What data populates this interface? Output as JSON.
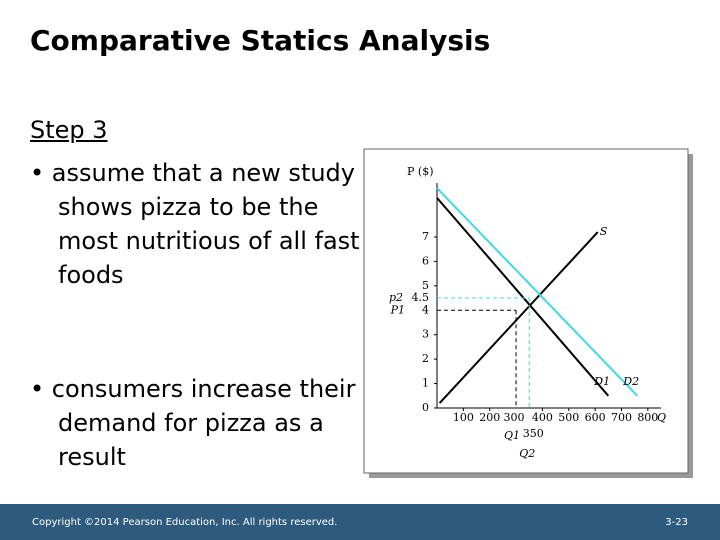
{
  "title": "Comparative Statics Analysis",
  "step": "Step 3",
  "bullets": [
    "assume that a new study shows pizza to be the most nutritious of all fast foods",
    "consumers increase their demand for pizza as a result"
  ],
  "footer": {
    "copyright": "Copyright ©2014 Pearson Education, Inc. All rights reserved.",
    "page": "3-23"
  },
  "chart_data": {
    "type": "line",
    "y_label": "P ($)",
    "x_label": "Q",
    "xlim": [
      0,
      850
    ],
    "ylim": [
      0,
      8.8
    ],
    "xticks": [
      100,
      200,
      400,
      500,
      600,
      700,
      800
    ],
    "yticks": [
      0,
      1,
      2,
      3,
      5,
      6,
      7
    ],
    "series": [
      {
        "name": "S",
        "color": "#000000",
        "x": [
          10,
          610
        ],
        "values": [
          0.2,
          7.2
        ]
      },
      {
        "name": "D1",
        "color": "#000000",
        "x": [
          0,
          650
        ],
        "values": [
          8.6,
          0.5
        ]
      },
      {
        "name": "D2",
        "color": "#3fd8e8",
        "x": [
          0,
          760
        ],
        "values": [
          9,
          0.5
        ]
      }
    ],
    "equilibria": [
      {
        "q": 300,
        "p": 4,
        "p_label": "P1",
        "q_label": "Q1",
        "color": "#000000"
      },
      {
        "q": 350,
        "p": 4.5,
        "p_label": "p2",
        "q_label": "Q2",
        "color": "#3fd8e8"
      }
    ]
  }
}
